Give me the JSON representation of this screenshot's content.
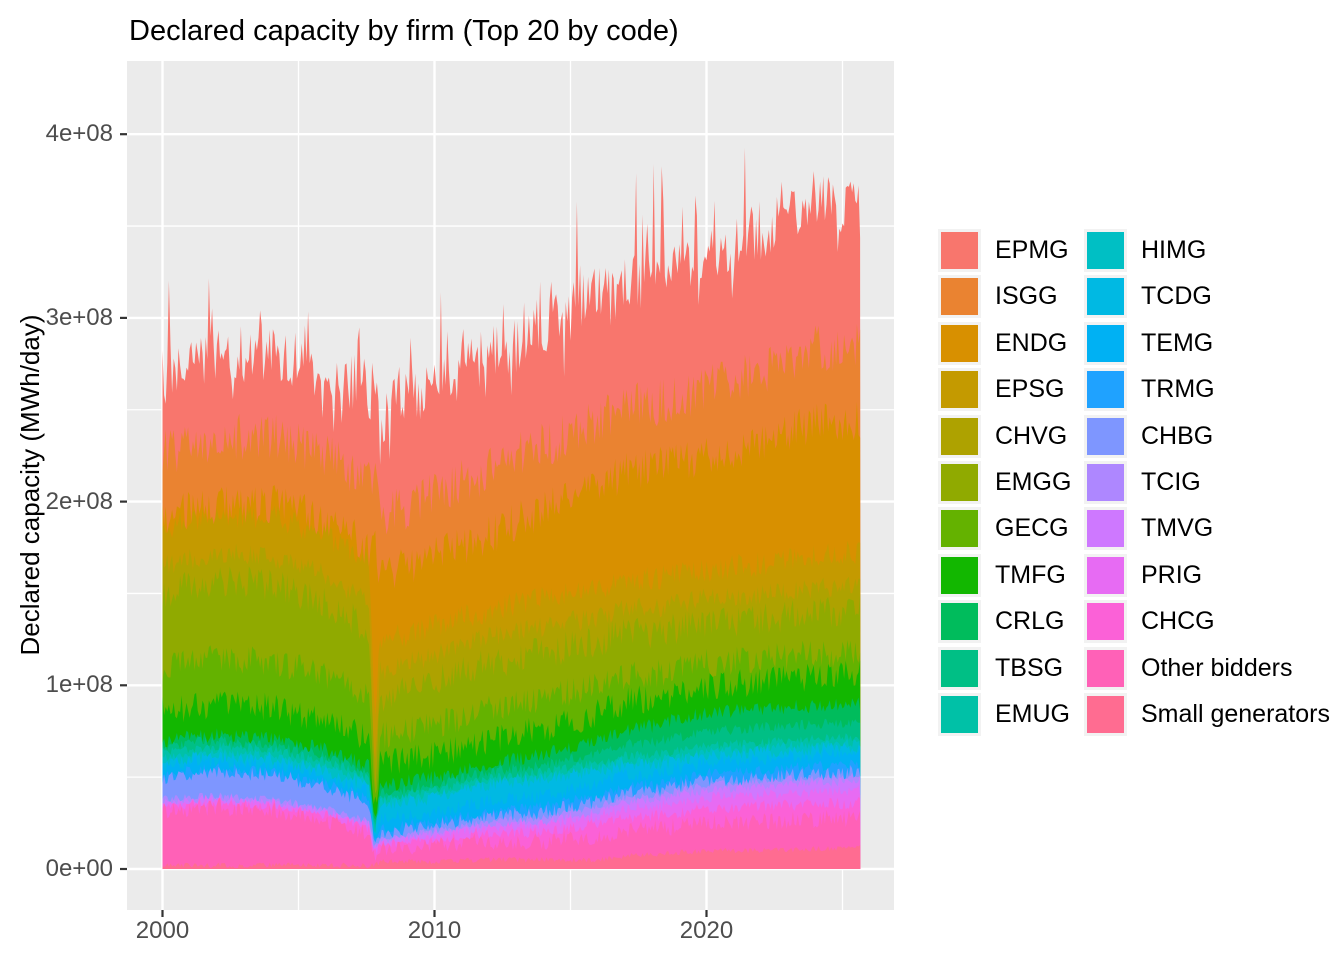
{
  "title": "Declared capacity by firm (Top 20 by code)",
  "y_axis": {
    "title": "Declared capacity (MWh/day)",
    "tick_labels": [
      "0e+00",
      "1e+08",
      "2e+08",
      "3e+08",
      "4e+08"
    ],
    "tick_values_e8": [
      0,
      1,
      2,
      3,
      4
    ],
    "minor_tick_values_e8": [
      0.5,
      1.5,
      2.5,
      3.5
    ]
  },
  "x_axis": {
    "tick_labels": [
      "2000",
      "2010",
      "2020"
    ],
    "tick_values": [
      2000,
      2010,
      2020
    ],
    "minor_tick_values": [
      2005,
      2015,
      2025
    ]
  },
  "theme": {
    "background": "#FFFFFF",
    "panel_background": "#EBEBEB",
    "grid_color": "#FFFFFF",
    "axis_text_color": "#4D4D4D",
    "tick_mark_color": "#333333",
    "title_color": "#000000",
    "legend_key_background": "#F2F2F2"
  },
  "legend": {
    "columns": [
      [
        "EPMG",
        "ISGG",
        "ENDG",
        "EPSG",
        "CHVG",
        "EMGG",
        "GECG",
        "TMFG",
        "CRLG",
        "TBSG",
        "EMUG"
      ],
      [
        "HIMG",
        "TCDG",
        "TEMG",
        "TRMG",
        "CHBG",
        "TCIG",
        "TMVG",
        "PRIG",
        "CHCG",
        "Other bidders",
        "Small generators"
      ]
    ]
  },
  "chart_data": {
    "type": "area",
    "stacked": true,
    "title": "Declared capacity by firm (Top 20 by code)",
    "xlabel": "",
    "ylabel": "Declared capacity (MWh/day)",
    "x_range": [
      2000,
      2025.7
    ],
    "ylim_e8": [
      0,
      4.4
    ],
    "grid": true,
    "legend_position": "right",
    "values_unit": "1e8 MWh/day",
    "stack_note": "series listed top-of-stack first; stacking is bottom-up in reverse of this order",
    "years": [
      2000,
      2002,
      2004,
      2006,
      2007.6,
      2007.8,
      2008,
      2010,
      2012,
      2014,
      2016,
      2017,
      2018,
      2020,
      2022,
      2024,
      2025.7
    ],
    "series": [
      {
        "name": "EPMG",
        "color": "#F8766D",
        "jitter": 0.16,
        "values": [
          0.42,
          0.44,
          0.46,
          0.44,
          0.5,
          0.36,
          0.55,
          0.6,
          0.62,
          0.62,
          0.7,
          0.65,
          0.7,
          0.72,
          0.75,
          0.82,
          0.76
        ]
      },
      {
        "name": "ISGG",
        "color": "#EA8331",
        "jitter": 0.13,
        "values": [
          0.35,
          0.36,
          0.37,
          0.37,
          0.36,
          0.36,
          0.33,
          0.33,
          0.35,
          0.36,
          0.36,
          0.36,
          0.35,
          0.36,
          0.38,
          0.4,
          0.4
        ]
      },
      {
        "name": "ENDG",
        "color": "#D89000",
        "jitter": 0.11,
        "values": [
          0.06,
          0.06,
          0.07,
          0.08,
          0.08,
          1.0,
          0.35,
          0.38,
          0.41,
          0.48,
          0.55,
          0.58,
          0.6,
          0.62,
          0.66,
          0.72,
          0.72
        ]
      },
      {
        "name": "EPSG",
        "color": "#C49A00",
        "jitter": 0.07,
        "values": [
          0.2,
          0.21,
          0.22,
          0.22,
          0.22,
          0.3,
          0.16,
          0.16,
          0.15,
          0.15,
          0.15,
          0.16,
          0.16,
          0.16,
          0.17,
          0.18,
          0.18
        ]
      },
      {
        "name": "CHVG",
        "color": "#AEA200",
        "jitter": 0.06,
        "values": [
          0.15,
          0.15,
          0.15,
          0.15,
          0.14,
          0.1,
          0.14,
          0.14,
          0.14,
          0.14,
          0.13,
          0.13,
          0.13,
          0.13,
          0.13,
          0.13,
          0.13
        ]
      },
      {
        "name": "EMGG",
        "color": "#90AA00",
        "jitter": 0.09,
        "values": [
          0.4,
          0.42,
          0.42,
          0.4,
          0.38,
          0.1,
          0.22,
          0.24,
          0.25,
          0.25,
          0.24,
          0.24,
          0.23,
          0.22,
          0.22,
          0.23,
          0.23
        ]
      },
      {
        "name": "GECG",
        "color": "#64B200",
        "jitter": 0.08,
        "values": [
          0.24,
          0.25,
          0.25,
          0.24,
          0.22,
          0.05,
          0.15,
          0.16,
          0.17,
          0.17,
          0.15,
          0.14,
          0.13,
          0.12,
          0.12,
          0.12,
          0.12
        ]
      },
      {
        "name": "TMFG",
        "color": "#12B700",
        "jitter": 0.08,
        "values": [
          0.16,
          0.17,
          0.17,
          0.16,
          0.15,
          0.03,
          0.12,
          0.12,
          0.13,
          0.14,
          0.15,
          0.15,
          0.15,
          0.15,
          0.15,
          0.16,
          0.16
        ]
      },
      {
        "name": "CRLG",
        "color": "#00BC5C",
        "jitter": 0.04,
        "values": [
          0.03,
          0.03,
          0.03,
          0.03,
          0.03,
          0.02,
          0.03,
          0.04,
          0.04,
          0.05,
          0.07,
          0.08,
          0.09,
          0.1,
          0.1,
          0.1,
          0.1
        ]
      },
      {
        "name": "TBSG",
        "color": "#00BF85",
        "jitter": 0.03,
        "values": [
          0.03,
          0.03,
          0.03,
          0.03,
          0.03,
          0.02,
          0.03,
          0.03,
          0.03,
          0.04,
          0.05,
          0.06,
          0.07,
          0.08,
          0.08,
          0.08,
          0.08
        ]
      },
      {
        "name": "EMUG",
        "color": "#00C1A7",
        "jitter": 0.025,
        "values": [
          0.03,
          0.03,
          0.03,
          0.03,
          0.03,
          0.02,
          0.02,
          0.02,
          0.02,
          0.02,
          0.02,
          0.03,
          0.03,
          0.03,
          0.03,
          0.03,
          0.03
        ]
      },
      {
        "name": "HIMG",
        "color": "#00BFC4",
        "jitter": 0.025,
        "values": [
          0.02,
          0.02,
          0.02,
          0.02,
          0.02,
          0.01,
          0.02,
          0.02,
          0.02,
          0.02,
          0.02,
          0.02,
          0.02,
          0.02,
          0.02,
          0.02,
          0.02
        ]
      },
      {
        "name": "TCDG",
        "color": "#00B9E3",
        "jitter": 0.04,
        "values": [
          0.03,
          0.03,
          0.03,
          0.03,
          0.03,
          0.02,
          0.08,
          0.08,
          0.09,
          0.09,
          0.08,
          0.06,
          0.05,
          0.04,
          0.04,
          0.04,
          0.04
        ]
      },
      {
        "name": "TEMG",
        "color": "#00B1F3",
        "jitter": 0.04,
        "values": [
          0.04,
          0.04,
          0.04,
          0.04,
          0.04,
          0.02,
          0.05,
          0.05,
          0.06,
          0.06,
          0.06,
          0.06,
          0.06,
          0.06,
          0.06,
          0.06,
          0.06
        ]
      },
      {
        "name": "TRMG",
        "color": "#1FA2FF",
        "jitter": 0.03,
        "values": [
          0.02,
          0.02,
          0.02,
          0.02,
          0.02,
          0.01,
          0.02,
          0.02,
          0.02,
          0.03,
          0.03,
          0.03,
          0.03,
          0.04,
          0.04,
          0.04,
          0.04
        ]
      },
      {
        "name": "CHBG",
        "color": "#7E96FF",
        "jitter": 0.04,
        "values": [
          0.12,
          0.13,
          0.13,
          0.12,
          0.1,
          0.02,
          0.03,
          0.03,
          0.03,
          0.03,
          0.03,
          0.03,
          0.03,
          0.02,
          0.02,
          0.02,
          0.02
        ]
      },
      {
        "name": "TCIG",
        "color": "#AE87FF",
        "jitter": 0.02,
        "values": [
          0.01,
          0.01,
          0.01,
          0.01,
          0.01,
          0.01,
          0.01,
          0.01,
          0.01,
          0.02,
          0.02,
          0.02,
          0.02,
          0.03,
          0.03,
          0.03,
          0.03
        ]
      },
      {
        "name": "TMVG",
        "color": "#CE78FF",
        "jitter": 0.025,
        "values": [
          0.01,
          0.01,
          0.01,
          0.01,
          0.01,
          0.01,
          0.01,
          0.01,
          0.02,
          0.02,
          0.03,
          0.04,
          0.04,
          0.04,
          0.05,
          0.05,
          0.05
        ]
      },
      {
        "name": "PRIG",
        "color": "#E76BF3",
        "jitter": 0.03,
        "values": [
          0.01,
          0.01,
          0.01,
          0.01,
          0.01,
          0.01,
          0.01,
          0.02,
          0.03,
          0.04,
          0.04,
          0.05,
          0.05,
          0.06,
          0.06,
          0.07,
          0.07
        ]
      },
      {
        "name": "CHCG",
        "color": "#FB61D7",
        "jitter": 0.035,
        "values": [
          0.03,
          0.03,
          0.03,
          0.03,
          0.03,
          0.02,
          0.03,
          0.04,
          0.05,
          0.05,
          0.07,
          0.07,
          0.07,
          0.08,
          0.08,
          0.08,
          0.08
        ]
      },
      {
        "name": "Other bidders",
        "color": "#FF61B7",
        "jitter": 0.05,
        "values": [
          0.3,
          0.32,
          0.3,
          0.25,
          0.18,
          0.05,
          0.07,
          0.09,
          0.1,
          0.1,
          0.13,
          0.14,
          0.14,
          0.15,
          0.16,
          0.16,
          0.16
        ]
      },
      {
        "name": "Small generators",
        "color": "#FF6C91",
        "jitter": 0.015,
        "values": [
          0.02,
          0.02,
          0.02,
          0.02,
          0.02,
          0.02,
          0.04,
          0.04,
          0.05,
          0.05,
          0.05,
          0.07,
          0.08,
          0.1,
          0.1,
          0.11,
          0.12
        ]
      }
    ]
  }
}
